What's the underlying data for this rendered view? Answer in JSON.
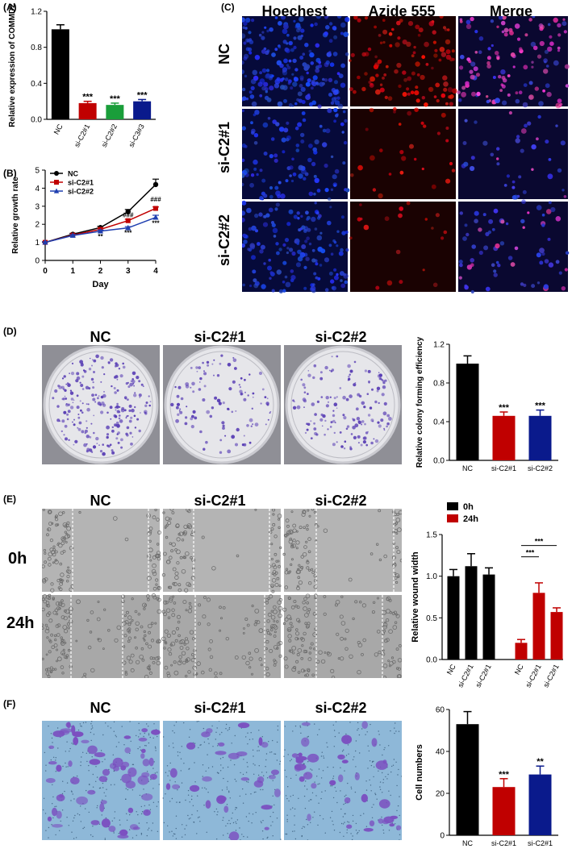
{
  "panel_labels": {
    "a": "(A)",
    "b": "(B)",
    "c": "(C)",
    "d": "(D)",
    "e": "(E)",
    "f": "(F)"
  },
  "colors": {
    "black": "#000000",
    "red": "#c00000",
    "green": "#1a9e3a",
    "navy": "#0a1a8c",
    "blue": "#1f3fb0"
  },
  "c_panel": {
    "columns": [
      "Hoechest",
      "Azide 555",
      "Merge"
    ],
    "rows": [
      "NC",
      "si-C2#1",
      "si-C2#2"
    ]
  },
  "d_panel": {
    "columns": [
      "NC",
      "si-C2#1",
      "si-C2#2"
    ]
  },
  "e_panel": {
    "columns": [
      "NC",
      "si-C2#1",
      "si-C2#2"
    ],
    "rows": [
      "0h",
      "24h"
    ]
  },
  "f_panel": {
    "columns": [
      "NC",
      "si-C2#1",
      "si-C2#2"
    ]
  },
  "chart_data": [
    {
      "id": "A",
      "type": "bar",
      "ylabel": "Relative expression of COMMD2",
      "ylim": [
        0,
        1.2
      ],
      "yticks": [
        0.0,
        0.4,
        0.8,
        1.2
      ],
      "categories": [
        "NC",
        "si-C2#1",
        "si-C2#2",
        "si-C3#3"
      ],
      "values": [
        1.0,
        0.18,
        0.16,
        0.2
      ],
      "errors": [
        0.05,
        0.02,
        0.02,
        0.02
      ],
      "colors": [
        "#000000",
        "#c00000",
        "#1a9e3a",
        "#0a1a8c"
      ],
      "annotations": [
        "",
        "***",
        "***",
        "***"
      ]
    },
    {
      "id": "B",
      "type": "line",
      "xlabel": "Day",
      "ylabel": "Relative growth rate",
      "xlim": [
        0,
        4
      ],
      "ylim": [
        0,
        5
      ],
      "xticks": [
        0,
        1,
        2,
        3,
        4
      ],
      "yticks": [
        0,
        1,
        2,
        3,
        4,
        5
      ],
      "legend": "top-left",
      "series": [
        {
          "name": "NC",
          "color": "#000000",
          "marker": "circle",
          "x": [
            0,
            1,
            2,
            3,
            4
          ],
          "y": [
            1.0,
            1.45,
            1.82,
            2.7,
            4.2
          ],
          "err": [
            0.03,
            0.05,
            0.07,
            0.12,
            0.3
          ]
        },
        {
          "name": "si-C2#1",
          "color": "#c00000",
          "marker": "square",
          "x": [
            0,
            1,
            2,
            3,
            4
          ],
          "y": [
            1.0,
            1.4,
            1.72,
            2.2,
            2.88
          ],
          "err": [
            0.03,
            0.05,
            0.06,
            0.08,
            0.08
          ]
        },
        {
          "name": "si-C2#2",
          "color": "#1f3fb0",
          "marker": "triangle",
          "x": [
            0,
            1,
            2,
            3,
            4
          ],
          "y": [
            1.0,
            1.38,
            1.62,
            1.8,
            2.38
          ],
          "err": [
            0.03,
            0.05,
            0.06,
            0.07,
            0.12
          ]
        }
      ],
      "annotations": [
        {
          "x": 2,
          "y": 1.2,
          "text": "**"
        },
        {
          "x": 3,
          "y": 2.38,
          "text": "###"
        },
        {
          "x": 3,
          "y": 1.4,
          "text": "***"
        },
        {
          "x": 4,
          "y": 3.25,
          "text": "###"
        },
        {
          "x": 4,
          "y": 1.95,
          "text": "***"
        }
      ]
    },
    {
      "id": "D",
      "type": "bar",
      "ylabel": "Relative colony forming efficiency",
      "ylim": [
        0,
        1.2
      ],
      "yticks": [
        0.0,
        0.4,
        0.8,
        1.2
      ],
      "categories": [
        "NC",
        "si-C2#1",
        "si-C2#2"
      ],
      "values": [
        1.0,
        0.46,
        0.46
      ],
      "errors": [
        0.08,
        0.04,
        0.06
      ],
      "colors": [
        "#000000",
        "#c00000",
        "#0a1a8c"
      ],
      "annotations": [
        "",
        "***",
        "***"
      ]
    },
    {
      "id": "E",
      "type": "bar",
      "ylabel": "Relative wound width",
      "ylim": [
        0,
        1.5
      ],
      "yticks": [
        0.0,
        0.5,
        1.0,
        1.5
      ],
      "legend": "top-left",
      "series": [
        {
          "name": "0h",
          "color": "#000000"
        },
        {
          "name": "24h",
          "color": "#c00000"
        }
      ],
      "categories": [
        "NC",
        "si-C2#1",
        "si-C2#1",
        "NC",
        "si-C2#1",
        "si-C2#1"
      ],
      "values": [
        1.0,
        1.12,
        1.02,
        0.2,
        0.8,
        0.57
      ],
      "errors": [
        0.08,
        0.15,
        0.08,
        0.04,
        0.12,
        0.05
      ],
      "bar_series": [
        0,
        0,
        0,
        1,
        1,
        1
      ],
      "brackets": [
        {
          "from": 3,
          "to": 4,
          "text": "***"
        },
        {
          "from": 3,
          "to": 5,
          "text": "***"
        }
      ]
    },
    {
      "id": "F",
      "type": "bar",
      "ylabel": "Cell numbers",
      "ylim": [
        0,
        60
      ],
      "yticks": [
        0,
        20,
        40,
        60
      ],
      "categories": [
        "NC",
        "si-C2#1",
        "si-C2#1"
      ],
      "values": [
        53,
        23,
        29
      ],
      "errors": [
        6,
        4,
        4
      ],
      "colors": [
        "#000000",
        "#c00000",
        "#0a1a8c"
      ],
      "annotations": [
        "",
        "***",
        "**"
      ]
    }
  ]
}
